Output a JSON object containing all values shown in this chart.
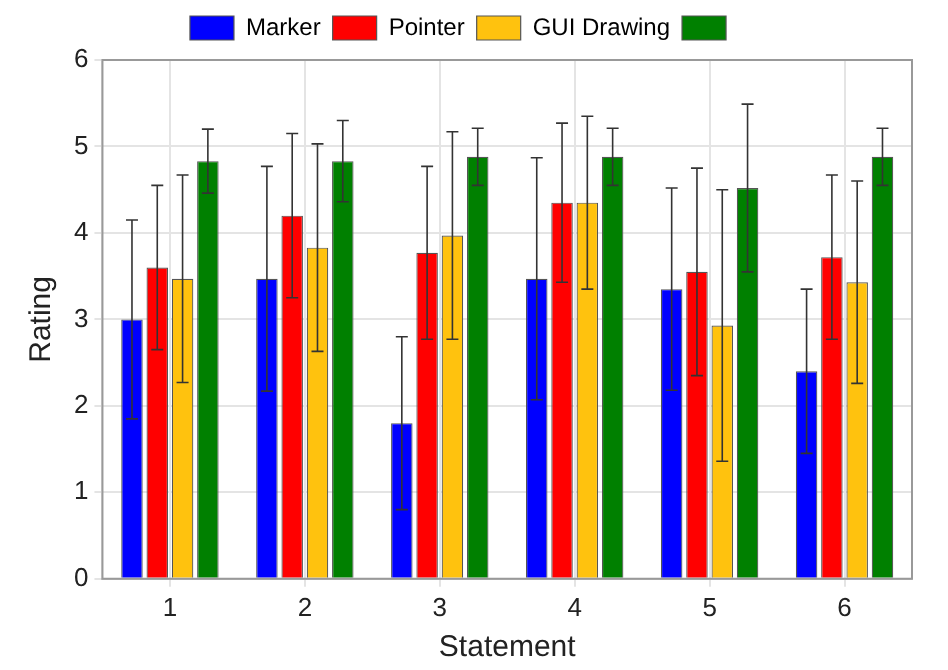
{
  "chart_data": {
    "type": "bar",
    "xlabel": "Statement",
    "ylabel": "Rating",
    "categories": [
      "1",
      "2",
      "3",
      "4",
      "5",
      "6"
    ],
    "series": [
      {
        "name": "Marker",
        "color": "#0000ff",
        "values": [
          3.0,
          3.47,
          1.8,
          3.47,
          3.35,
          2.4
        ],
        "errors": [
          1.15,
          1.3,
          1.0,
          1.4,
          1.17,
          0.95
        ]
      },
      {
        "name": "Pointer",
        "color": "#ff0000",
        "values": [
          3.6,
          4.2,
          3.77,
          4.35,
          3.55,
          3.72
        ],
        "errors": [
          0.95,
          0.95,
          1.0,
          0.92,
          1.2,
          0.95
        ]
      },
      {
        "name": "GUI Drawing",
        "color": "#ffc20e",
        "values": [
          3.47,
          3.83,
          3.97,
          4.35,
          2.93,
          3.43
        ],
        "errors": [
          1.2,
          1.2,
          1.2,
          1.0,
          1.57,
          1.17
        ]
      },
      {
        "color": "#008000",
        "values": [
          4.83,
          4.83,
          4.88,
          4.88,
          4.52,
          4.88
        ],
        "errors": [
          0.37,
          0.47,
          0.33,
          0.33,
          0.97,
          0.33
        ]
      }
    ],
    "ylim": [
      0,
      6
    ],
    "yticks": [
      0,
      1,
      2,
      3,
      4,
      5,
      6
    ],
    "grid": true,
    "legend": "top"
  }
}
